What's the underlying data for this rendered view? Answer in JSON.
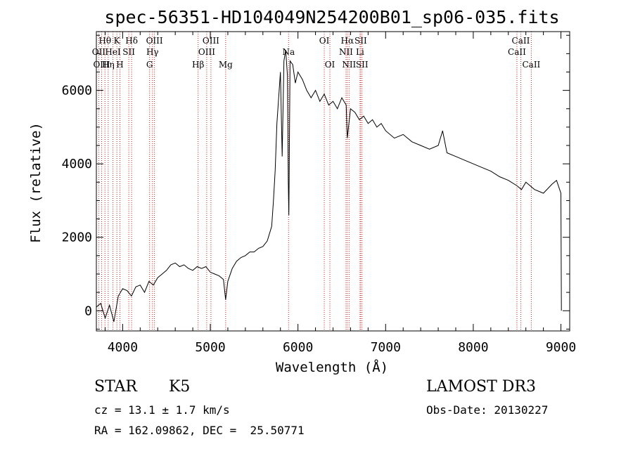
{
  "chart_data": {
    "type": "line",
    "title": "spec-56351-HD104049N254200B01_sp06-035.fits",
    "xlabel": "Wavelength (Å)",
    "ylabel": "Flux (relative)",
    "xlim": [
      3700,
      9100
    ],
    "ylim": [
      -550,
      7600
    ],
    "xticks": [
      4000,
      5000,
      6000,
      7000,
      8000,
      9000
    ],
    "yticks": [
      0,
      2000,
      4000,
      6000
    ],
    "grid": false,
    "series": [
      {
        "color": "#000000",
        "x": [
          3700,
          3750,
          3800,
          3850,
          3900,
          3950,
          4000,
          4050,
          4100,
          4150,
          4200,
          4250,
          4300,
          4350,
          4400,
          4450,
          4500,
          4550,
          4600,
          4650,
          4700,
          4750,
          4800,
          4850,
          4900,
          4950,
          5000,
          5050,
          5100,
          5150,
          5175,
          5200,
          5250,
          5300,
          5350,
          5400,
          5450,
          5500,
          5550,
          5600,
          5650,
          5700,
          5720,
          5740,
          5760,
          5780,
          5800,
          5820,
          5840,
          5860,
          5880,
          5890,
          5896,
          5910,
          5940,
          5970,
          6000,
          6050,
          6100,
          6150,
          6200,
          6250,
          6300,
          6350,
          6400,
          6450,
          6500,
          6550,
          6563,
          6600,
          6650,
          6700,
          6750,
          6800,
          6850,
          6900,
          6950,
          7000,
          7100,
          7200,
          7300,
          7400,
          7500,
          7600,
          7650,
          7700,
          7800,
          7900,
          8000,
          8100,
          8200,
          8300,
          8400,
          8500,
          8550,
          8600,
          8700,
          8800,
          8900,
          8950,
          9000,
          9005
        ],
        "y": [
          100,
          200,
          -200,
          150,
          -300,
          400,
          600,
          550,
          400,
          650,
          700,
          500,
          800,
          700,
          900,
          1000,
          1100,
          1250,
          1300,
          1200,
          1250,
          1150,
          1100,
          1200,
          1150,
          1200,
          1050,
          1000,
          950,
          850,
          300,
          800,
          1150,
          1350,
          1450,
          1500,
          1600,
          1600,
          1700,
          1750,
          1900,
          2300,
          3000,
          3800,
          5100,
          5800,
          6500,
          4200,
          6800,
          7100,
          6400,
          3500,
          2600,
          6800,
          6700,
          6200,
          6500,
          6300,
          6000,
          5800,
          6000,
          5700,
          5900,
          5600,
          5700,
          5500,
          5800,
          5600,
          4700,
          5500,
          5400,
          5200,
          5300,
          5100,
          5200,
          5000,
          5100,
          4900,
          4700,
          4800,
          4600,
          4500,
          4400,
          4500,
          4900,
          4300,
          4200,
          4100,
          4000,
          3900,
          3800,
          3650,
          3550,
          3400,
          3300,
          3500,
          3300,
          3200,
          3450,
          3550,
          3200,
          0
        ]
      }
    ],
    "spectral_lines": [
      {
        "label": "Hθ",
        "x": 3798,
        "row": 0
      },
      {
        "label": "OII",
        "x": 3727,
        "row": 1
      },
      {
        "label": "OIII",
        "x": 3760,
        "row": 2
      },
      {
        "label": "K",
        "x": 3934,
        "row": 0
      },
      {
        "label": "HeI",
        "x": 3889,
        "row": 1
      },
      {
        "label": "Hη",
        "x": 3835,
        "row": 2
      },
      {
        "label": "Hδ",
        "x": 4102,
        "row": 0
      },
      {
        "label": "SII",
        "x": 4070,
        "row": 1
      },
      {
        "label": "H",
        "x": 3969,
        "row": 2
      },
      {
        "label": "OIII",
        "x": 4363,
        "row": 0
      },
      {
        "label": "Hγ",
        "x": 4340,
        "row": 1
      },
      {
        "label": "G",
        "x": 4307,
        "row": 2
      },
      {
        "label": "OIII",
        "x": 5007,
        "row": 0
      },
      {
        "label": "OIII",
        "x": 4959,
        "row": 1
      },
      {
        "label": "Hβ",
        "x": 4861,
        "row": 2
      },
      {
        "label": "Mg",
        "x": 5175,
        "row": 2
      },
      {
        "label": "Na",
        "x": 5893,
        "row": 1
      },
      {
        "label": "OI",
        "x": 6300,
        "row": 0
      },
      {
        "label": "OI",
        "x": 6364,
        "row": 2
      },
      {
        "label": "Hα",
        "x": 6563,
        "row": 0
      },
      {
        "label": "SII",
        "x": 6716,
        "row": 0
      },
      {
        "label": "NII",
        "x": 6548,
        "row": 1
      },
      {
        "label": "Li",
        "x": 6708,
        "row": 1
      },
      {
        "label": "NII",
        "x": 6583,
        "row": 2
      },
      {
        "label": "SII",
        "x": 6731,
        "row": 2
      },
      {
        "label": "CaII",
        "x": 8542,
        "row": 0
      },
      {
        "label": "CaII",
        "x": 8498,
        "row": 1
      },
      {
        "label": "CaII",
        "x": 8662,
        "row": 2
      }
    ],
    "line_marker_color": "#cc2222"
  },
  "info": {
    "object_class": "STAR",
    "subclass": "K5",
    "survey": "LAMOST DR3",
    "redshift": "cz = 13.1 ± 1.7 km/s",
    "obs_date": "Obs-Date: 20130227",
    "coords": "RA = 162.09862, DEC =  25.50771"
  }
}
